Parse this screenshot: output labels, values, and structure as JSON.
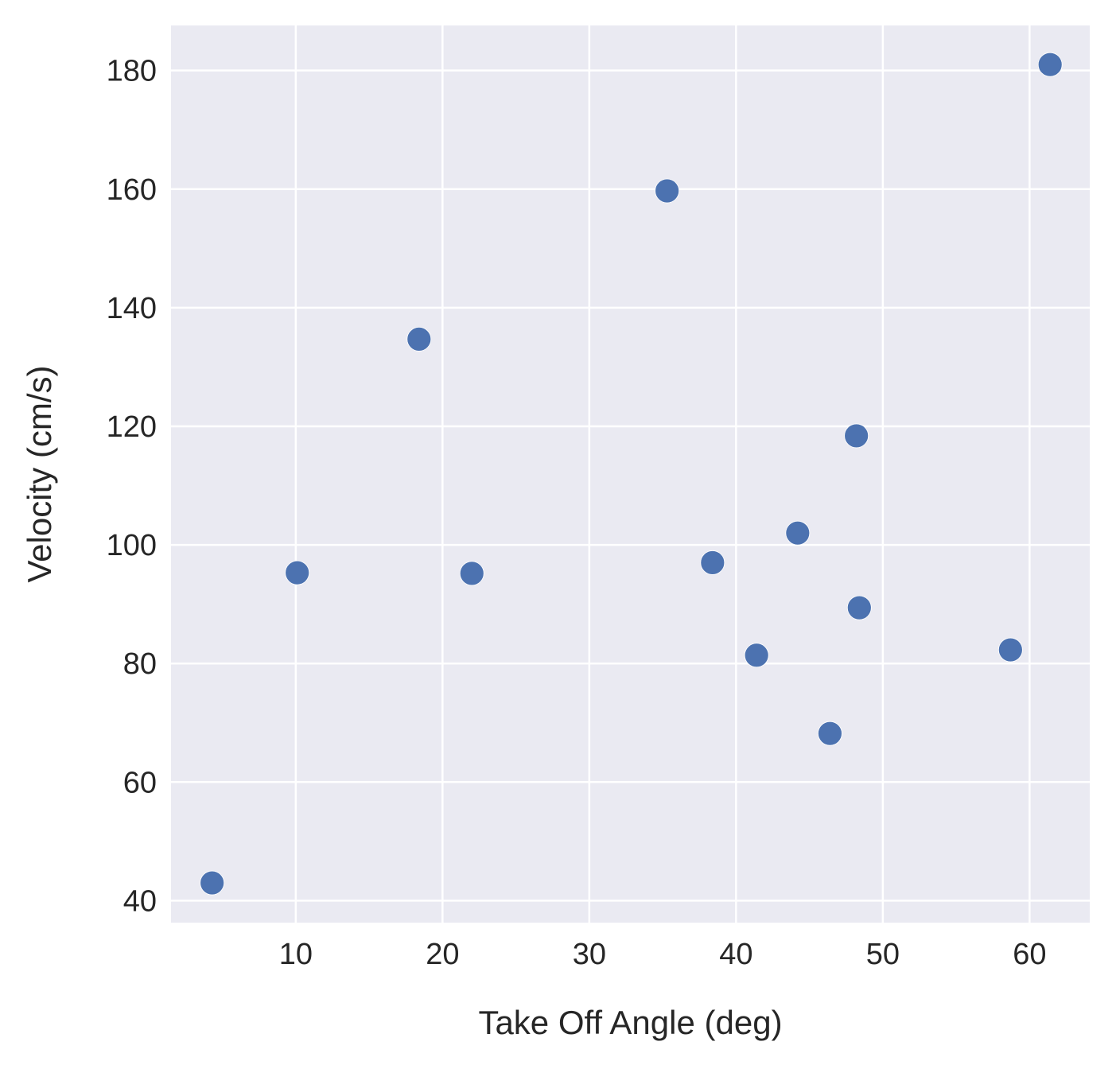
{
  "chart_data": {
    "type": "scatter",
    "xlabel": "Take Off Angle (deg)",
    "ylabel": "Velocity (cm/s)",
    "xlim": [
      1.5,
      64.1
    ],
    "ylim": [
      36.3,
      187.6
    ],
    "x_ticks": [
      10,
      20,
      30,
      40,
      50,
      60
    ],
    "y_ticks": [
      40,
      60,
      80,
      100,
      120,
      140,
      160,
      180
    ],
    "grid": true,
    "legend": "none",
    "series": [
      {
        "points": [
          {
            "x": 4.3,
            "y": 43.0
          },
          {
            "x": 10.1,
            "y": 95.3
          },
          {
            "x": 18.4,
            "y": 134.7
          },
          {
            "x": 22.0,
            "y": 95.2
          },
          {
            "x": 35.3,
            "y": 159.7
          },
          {
            "x": 38.4,
            "y": 97.0
          },
          {
            "x": 41.4,
            "y": 81.4
          },
          {
            "x": 44.2,
            "y": 102.0
          },
          {
            "x": 46.4,
            "y": 68.2
          },
          {
            "x": 48.2,
            "y": 118.4
          },
          {
            "x": 48.4,
            "y": 89.4
          },
          {
            "x": 58.7,
            "y": 82.3
          },
          {
            "x": 61.4,
            "y": 181.0
          }
        ]
      }
    ]
  },
  "style": {
    "plot_background": "#eaeaf2",
    "grid_color": "#ffffff",
    "marker_color": "#4c72b0",
    "text_color": "#262626"
  }
}
